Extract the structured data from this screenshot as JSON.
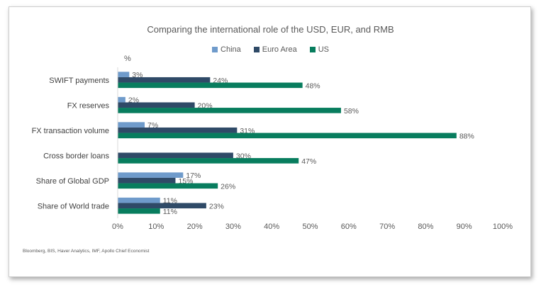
{
  "chart_data": {
    "type": "bar",
    "orientation": "horizontal",
    "title": "Comparing the international role of the USD, EUR, and RMB",
    "unit_label": "%",
    "categories": [
      "SWIFT payments",
      "FX reserves",
      "FX transaction volume",
      "Cross border loans",
      "Share of Global GDP",
      "Share of World trade"
    ],
    "series": [
      {
        "name": "China",
        "color": "#6f9bcb",
        "values": [
          3,
          2,
          7,
          null,
          17,
          11
        ],
        "labels": [
          "3%",
          "2%",
          "7%",
          "",
          "17%",
          "11%"
        ]
      },
      {
        "name": "Euro Area",
        "color": "#2f4a67",
        "values": [
          24,
          20,
          31,
          30,
          15,
          23
        ],
        "labels": [
          "24%",
          "20%",
          "31%",
          "30%",
          "15%",
          "23%"
        ]
      },
      {
        "name": "US",
        "color": "#087d5e",
        "values": [
          48,
          58,
          88,
          47,
          26,
          11
        ],
        "labels": [
          "48%",
          "58%",
          "88%",
          "47%",
          "26%",
          "11%"
        ]
      }
    ],
    "xlim": [
      0,
      100
    ],
    "x_ticks": [
      "0%",
      "10%",
      "20%",
      "30%",
      "40%",
      "50%",
      "60%",
      "70%",
      "80%",
      "90%",
      "100%"
    ],
    "grid": false,
    "legend_position": "top"
  },
  "source_note": "Bloomberg, BIS, Haver Analytics, IMF, Apollo Chief Economist"
}
